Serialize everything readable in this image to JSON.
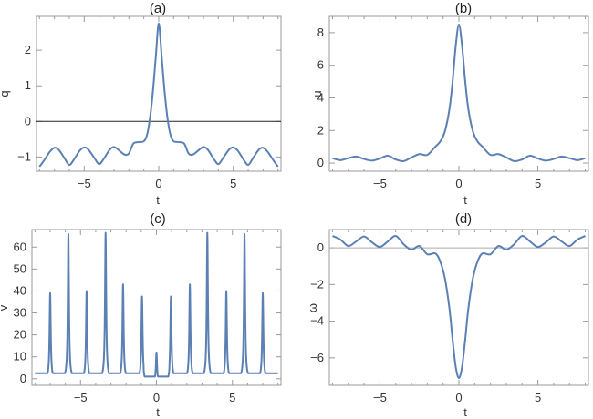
{
  "chart_data": [
    {
      "panel": "a",
      "title": "(a)",
      "type": "line",
      "xlabel": "t",
      "ylabel": "q",
      "xlim": [
        -8.2,
        8.2
      ],
      "ylim": [
        -1.4,
        2.95
      ],
      "xticks": [
        -5,
        0,
        5
      ],
      "xtick_labels": [
        "−5",
        "0",
        "5"
      ],
      "yticks": [
        -1,
        0,
        1,
        2
      ],
      "ytick_labels": [
        "−1",
        "0",
        "1",
        "2"
      ],
      "hline": 0,
      "series": [
        {
          "x": [
            -8,
            -7.7,
            -7.3,
            -7,
            -6.7,
            -6.3,
            -6,
            -5.7,
            -5.3,
            -5,
            -4.7,
            -4.3,
            -4,
            -3.7,
            -3.3,
            -3,
            -2.7,
            -2.3,
            -2,
            -1.7,
            -1.3,
            -1,
            -0.8,
            -0.6,
            -0.4,
            -0.2,
            0,
            0.2,
            0.4,
            0.6,
            0.8,
            1,
            1.3,
            1.7,
            2,
            2.3,
            2.7,
            3,
            3.3,
            3.7,
            4,
            4.3,
            4.7,
            5,
            5.3,
            5.7,
            6,
            6.3,
            6.7,
            7,
            7.3,
            7.7,
            8
          ],
          "y": [
            -1.27,
            -1.1,
            -0.85,
            -0.74,
            -0.8,
            -1.05,
            -1.22,
            -1.08,
            -0.82,
            -0.73,
            -0.8,
            -1.04,
            -1.2,
            -1.06,
            -0.8,
            -0.72,
            -0.8,
            -0.93,
            -0.9,
            -0.62,
            -0.58,
            -0.56,
            -0.4,
            0.05,
            0.8,
            1.8,
            2.75,
            1.8,
            0.8,
            0.05,
            -0.4,
            -0.56,
            -0.58,
            -0.62,
            -0.9,
            -0.93,
            -0.8,
            -0.72,
            -0.8,
            -1.06,
            -1.2,
            -1.04,
            -0.8,
            -0.73,
            -0.82,
            -1.08,
            -1.22,
            -1.05,
            -0.8,
            -0.74,
            -0.85,
            -1.1,
            -1.27
          ]
        }
      ]
    },
    {
      "panel": "b",
      "title": "(b)",
      "type": "line",
      "xlabel": "t",
      "ylabel": "u",
      "xlim": [
        -8.2,
        8.2
      ],
      "ylim": [
        -0.5,
        9.0
      ],
      "xticks": [
        -5,
        0,
        5
      ],
      "xtick_labels": [
        "−5",
        "0",
        "5"
      ],
      "yticks": [
        0,
        2,
        4,
        6,
        8
      ],
      "ytick_labels": [
        "0",
        "2",
        "4",
        "6",
        "8"
      ],
      "series": [
        {
          "x": [
            -8,
            -7.5,
            -7,
            -6.5,
            -6,
            -5.5,
            -5,
            -4.5,
            -4,
            -3.5,
            -3,
            -2.5,
            -2,
            -1.5,
            -1.2,
            -0.9,
            -0.6,
            -0.4,
            -0.2,
            0,
            0.2,
            0.4,
            0.6,
            0.9,
            1.2,
            1.5,
            2,
            2.5,
            3,
            3.5,
            4,
            4.5,
            5,
            5.5,
            6,
            6.5,
            7,
            7.5,
            8
          ],
          "y": [
            0.3,
            0.18,
            0.3,
            0.4,
            0.25,
            0.15,
            0.28,
            0.45,
            0.22,
            0.12,
            0.35,
            0.55,
            0.5,
            1.0,
            1.3,
            1.9,
            3.3,
            5.0,
            7.2,
            8.5,
            7.2,
            5.0,
            3.3,
            1.9,
            1.3,
            1.0,
            0.5,
            0.55,
            0.35,
            0.12,
            0.22,
            0.45,
            0.28,
            0.15,
            0.25,
            0.4,
            0.3,
            0.18,
            0.3
          ]
        }
      ]
    },
    {
      "panel": "c",
      "title": "(c)",
      "type": "line",
      "xlabel": "t",
      "ylabel": "v",
      "xlim": [
        -8.2,
        8.2
      ],
      "ylim": [
        -3,
        68
      ],
      "xticks": [
        -5,
        0,
        5
      ],
      "xtick_labels": [
        "−5",
        "0",
        "5"
      ],
      "yticks": [
        0,
        10,
        20,
        30,
        40,
        50,
        60
      ],
      "ytick_labels": [
        "0",
        "10",
        "20",
        "30",
        "40",
        "50",
        "60"
      ],
      "baseline": 2.5,
      "spikes": [
        {
          "t": -7.0,
          "v": 39
        },
        {
          "t": -5.8,
          "v": 66
        },
        {
          "t": -4.6,
          "v": 40
        },
        {
          "t": -3.35,
          "v": 66.5
        },
        {
          "t": -2.2,
          "v": 43
        },
        {
          "t": -0.95,
          "v": 37.5
        },
        {
          "t": 0.0,
          "v": 13.5
        },
        {
          "t": 0.95,
          "v": 37.5
        },
        {
          "t": 2.2,
          "v": 43
        },
        {
          "t": 3.35,
          "v": 66.5
        },
        {
          "t": 4.6,
          "v": 40
        },
        {
          "t": 5.8,
          "v": 66
        },
        {
          "t": 7.0,
          "v": 39
        }
      ]
    },
    {
      "panel": "d",
      "title": "(d)",
      "type": "line",
      "xlabel": "t",
      "ylabel": "ω",
      "xlim": [
        -8.2,
        8.2
      ],
      "ylim": [
        -7.5,
        1.0
      ],
      "xticks": [
        -5,
        0,
        5
      ],
      "xtick_labels": [
        "−5",
        "0",
        "5"
      ],
      "yticks": [
        -6,
        -4,
        -2,
        0
      ],
      "ytick_labels": [
        "−6",
        "−4",
        "−2",
        "0"
      ],
      "hline": 0,
      "series": [
        {
          "x": [
            -8,
            -7.5,
            -7,
            -6.5,
            -6,
            -5.5,
            -5,
            -4.5,
            -4,
            -3.5,
            -3,
            -2.5,
            -2,
            -1.5,
            -1.2,
            -0.9,
            -0.6,
            -0.4,
            -0.2,
            0,
            0.2,
            0.4,
            0.6,
            0.9,
            1.2,
            1.5,
            2,
            2.5,
            3,
            3.5,
            4,
            4.5,
            5,
            5.5,
            6,
            6.5,
            7,
            7.5,
            8
          ],
          "y": [
            0.65,
            0.45,
            0.1,
            0.35,
            0.62,
            0.3,
            0.05,
            0.35,
            0.65,
            0.2,
            -0.1,
            0.1,
            -0.35,
            -0.3,
            -0.7,
            -1.6,
            -3.3,
            -5.0,
            -6.5,
            -7.1,
            -6.5,
            -5.0,
            -3.3,
            -1.6,
            -0.7,
            -0.3,
            -0.35,
            0.1,
            -0.1,
            0.2,
            0.65,
            0.35,
            0.05,
            0.3,
            0.62,
            0.35,
            0.1,
            0.45,
            0.65
          ]
        }
      ]
    }
  ]
}
